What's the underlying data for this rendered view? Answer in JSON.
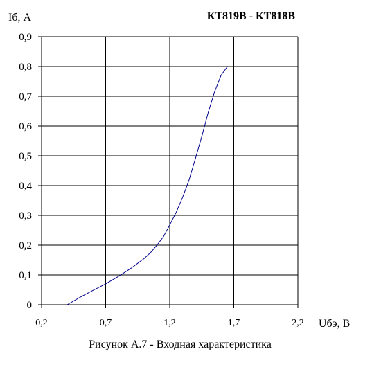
{
  "chart_data": {
    "type": "line",
    "title": "КТ819В - КТ818В",
    "ylabel": "Iб, А",
    "xlabel": "Uбэ, В",
    "caption": "Рисунок А.7 - Входная характеристика",
    "xlim": [
      0.2,
      2.2
    ],
    "ylim": [
      0,
      0.9
    ],
    "x_ticks": [
      0.2,
      0.7,
      1.2,
      1.7,
      2.2
    ],
    "x_tick_labels": [
      "0,2",
      "0,7",
      "1,2",
      "1,7",
      "2,2"
    ],
    "y_ticks": [
      0,
      0.1,
      0.2,
      0.3,
      0.4,
      0.5,
      0.6,
      0.7,
      0.8,
      0.9
    ],
    "y_tick_labels": [
      "0",
      "0,1",
      "0,2",
      "0,3",
      "0,4",
      "0,5",
      "0,6",
      "0,7",
      "0,8",
      "0,9"
    ],
    "grid": true,
    "line_color": "#00008b",
    "series": [
      {
        "x": [
          0.4,
          0.5,
          0.6,
          0.7,
          0.8,
          0.9,
          1.0,
          1.05,
          1.1,
          1.15,
          1.2,
          1.25,
          1.3,
          1.35,
          1.4,
          1.45,
          1.5,
          1.55,
          1.6,
          1.65
        ],
        "values": [
          0.0,
          0.025,
          0.048,
          0.07,
          0.095,
          0.123,
          0.155,
          0.175,
          0.2,
          0.228,
          0.268,
          0.31,
          0.36,
          0.418,
          0.49,
          0.565,
          0.645,
          0.715,
          0.77,
          0.8
        ]
      }
    ]
  }
}
